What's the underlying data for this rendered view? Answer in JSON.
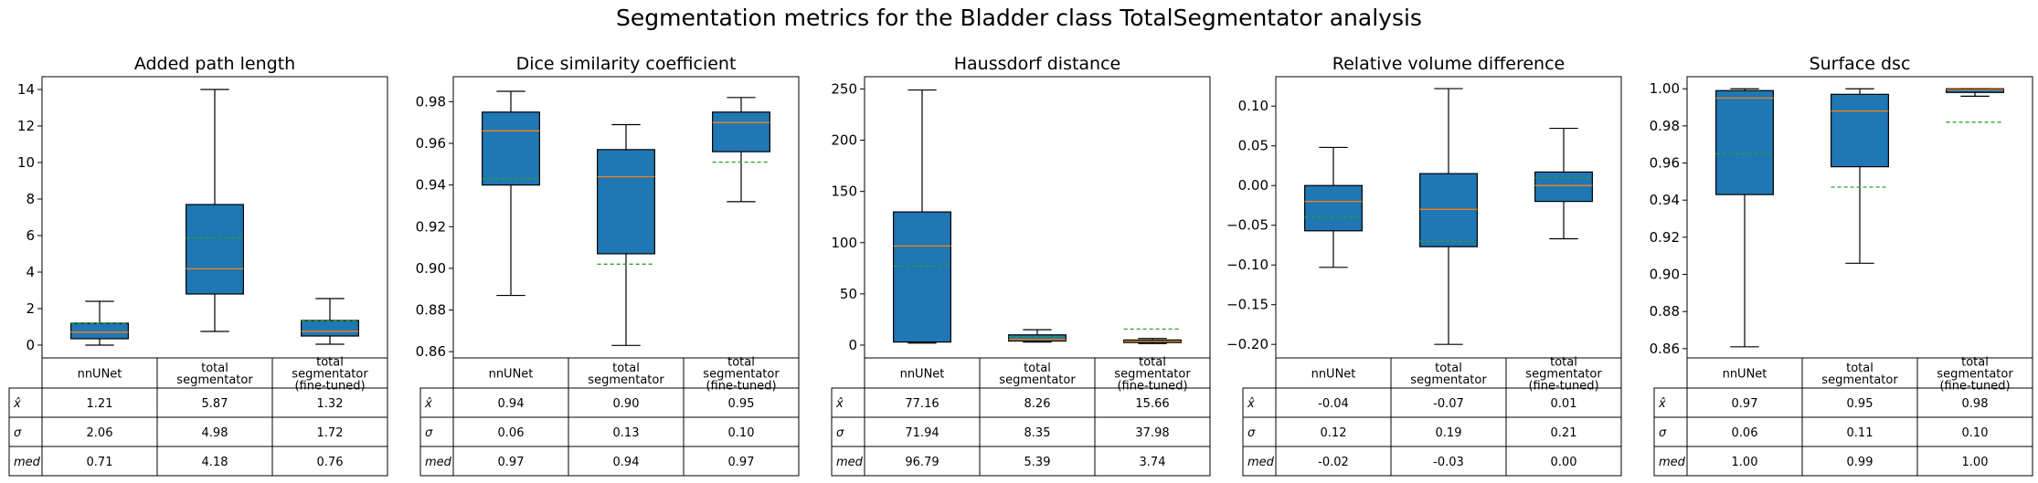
{
  "suptitle": "Segmentation metrics for the Bladder class TotalSegmentator analysis",
  "row_labels": [
    "x̂",
    "σ",
    "med"
  ],
  "column_headers": [
    [
      "nnUNet"
    ],
    [
      "total",
      "segmentator"
    ],
    [
      "total",
      "segmentator",
      "(fine-tuned)"
    ]
  ],
  "colors": {
    "box_fill": "#1f77b4",
    "median_line": "#ff7f0e",
    "mean_line": "#2ca02c",
    "edge": "#000000"
  },
  "chart_data": [
    {
      "type": "boxplot",
      "title": "Added path length",
      "categories": [
        "nnUNet",
        "total segmentator",
        "total segmentator (fine-tuned)"
      ],
      "ylim": [
        -0.7,
        14.7
      ],
      "yticks": [
        0,
        2,
        4,
        6,
        8,
        10,
        12,
        14
      ],
      "ytick_labels": [
        "0",
        "2",
        "4",
        "6",
        "8",
        "10",
        "12",
        "14"
      ],
      "boxes": [
        {
          "whislo": 0.0,
          "q1": 0.35,
          "med": 0.71,
          "q3": 1.2,
          "whishi": 2.4,
          "mean": 1.21
        },
        {
          "whislo": 0.75,
          "q1": 2.8,
          "med": 4.18,
          "q3": 7.7,
          "whishi": 14.0,
          "mean": 5.87
        },
        {
          "whislo": 0.05,
          "q1": 0.5,
          "med": 0.76,
          "q3": 1.35,
          "whishi": 2.55,
          "mean": 1.32
        }
      ],
      "table": {
        "mean": [
          "1.21",
          "5.87",
          "1.32"
        ],
        "std": [
          "2.06",
          "4.98",
          "1.72"
        ],
        "median": [
          "0.71",
          "4.18",
          "0.76"
        ]
      }
    },
    {
      "type": "boxplot",
      "title": "Dice similarity coefficient",
      "categories": [
        "nnUNet",
        "total segmentator",
        "total segmentator (fine-tuned)"
      ],
      "ylim": [
        0.857,
        0.992
      ],
      "yticks": [
        0.86,
        0.88,
        0.9,
        0.92,
        0.94,
        0.96,
        0.98
      ],
      "ytick_labels": [
        "0.86",
        "0.88",
        "0.90",
        "0.92",
        "0.94",
        "0.96",
        "0.98"
      ],
      "boxes": [
        {
          "whislo": 0.887,
          "q1": 0.94,
          "med": 0.966,
          "q3": 0.975,
          "whishi": 0.985,
          "mean": 0.943
        },
        {
          "whislo": 0.863,
          "q1": 0.907,
          "med": 0.944,
          "q3": 0.957,
          "whishi": 0.969,
          "mean": 0.902
        },
        {
          "whislo": 0.932,
          "q1": 0.956,
          "med": 0.97,
          "q3": 0.975,
          "whishi": 0.982,
          "mean": 0.951
        }
      ],
      "table": {
        "mean": [
          "0.94",
          "0.90",
          "0.95"
        ],
        "std": [
          "0.06",
          "0.13",
          "0.10"
        ],
        "median": [
          "0.97",
          "0.94",
          "0.97"
        ]
      }
    },
    {
      "type": "boxplot",
      "title": "Haussdorf distance",
      "categories": [
        "nnUNet",
        "total segmentator",
        "total segmentator (fine-tuned)"
      ],
      "ylim": [
        -12.5,
        262
      ],
      "yticks": [
        0,
        50,
        100,
        150,
        200,
        250
      ],
      "ytick_labels": [
        "0",
        "50",
        "100",
        "150",
        "200",
        "250"
      ],
      "boxes": [
        {
          "whislo": 2.0,
          "q1": 3.0,
          "med": 96.79,
          "q3": 130.0,
          "whishi": 249.0,
          "mean": 77.16
        },
        {
          "whislo": 3.0,
          "q1": 4.0,
          "med": 5.39,
          "q3": 10.0,
          "whishi": 15.0,
          "mean": 8.26
        },
        {
          "whislo": 1.5,
          "q1": 2.5,
          "med": 3.74,
          "q3": 5.0,
          "whishi": 6.5,
          "mean": 15.66
        }
      ],
      "table": {
        "mean": [
          "77.16",
          "8.26",
          "15.66"
        ],
        "std": [
          "71.94",
          "8.35",
          "37.98"
        ],
        "median": [
          "96.79",
          "5.39",
          "3.74"
        ]
      }
    },
    {
      "type": "boxplot",
      "title": "Relative volume difference",
      "categories": [
        "nnUNet",
        "total segmentator",
        "total segmentator (fine-tuned)"
      ],
      "ylim": [
        -0.217,
        0.137
      ],
      "yticks": [
        -0.2,
        -0.15,
        -0.1,
        -0.05,
        0.0,
        0.05,
        0.1
      ],
      "ytick_labels": [
        "−0.20",
        "−0.15",
        "−0.10",
        "−0.05",
        "0.00",
        "0.05",
        "0.10"
      ],
      "boxes": [
        {
          "whislo": -0.103,
          "q1": -0.057,
          "med": -0.02,
          "q3": 0.0,
          "whishi": 0.048,
          "mean": -0.04
        },
        {
          "whislo": -0.2,
          "q1": -0.077,
          "med": -0.03,
          "q3": 0.015,
          "whishi": 0.122,
          "mean": -0.07
        },
        {
          "whislo": -0.067,
          "q1": -0.02,
          "med": 0.0,
          "q3": 0.017,
          "whishi": 0.072,
          "mean": 0.01
        }
      ],
      "table": {
        "mean": [
          "-0.04",
          "-0.07",
          "0.01"
        ],
        "std": [
          "0.12",
          "0.19",
          "0.21"
        ],
        "median": [
          "-0.02",
          "-0.03",
          "0.00"
        ]
      }
    },
    {
      "type": "boxplot",
      "title": "Surface dsc",
      "categories": [
        "nnUNet",
        "total segmentator",
        "total segmentator (fine-tuned)"
      ],
      "ylim": [
        0.855,
        1.0065
      ],
      "yticks": [
        0.86,
        0.88,
        0.9,
        0.92,
        0.94,
        0.96,
        0.98,
        1.0
      ],
      "ytick_labels": [
        "0.86",
        "0.88",
        "0.90",
        "0.92",
        "0.94",
        "0.96",
        "0.98",
        "1.00"
      ],
      "boxes": [
        {
          "whislo": 0.861,
          "q1": 0.943,
          "med": 0.995,
          "q3": 0.999,
          "whishi": 1.0,
          "mean": 0.965
        },
        {
          "whislo": 0.906,
          "q1": 0.958,
          "med": 0.988,
          "q3": 0.997,
          "whishi": 1.0,
          "mean": 0.947
        },
        {
          "whislo": 0.996,
          "q1": 0.998,
          "med": 0.9995,
          "q3": 1.0,
          "whishi": 1.0,
          "mean": 0.982
        }
      ],
      "table": {
        "mean": [
          "0.97",
          "0.95",
          "0.98"
        ],
        "std": [
          "0.06",
          "0.11",
          "0.10"
        ],
        "median": [
          "1.00",
          "0.99",
          "1.00"
        ]
      }
    }
  ]
}
